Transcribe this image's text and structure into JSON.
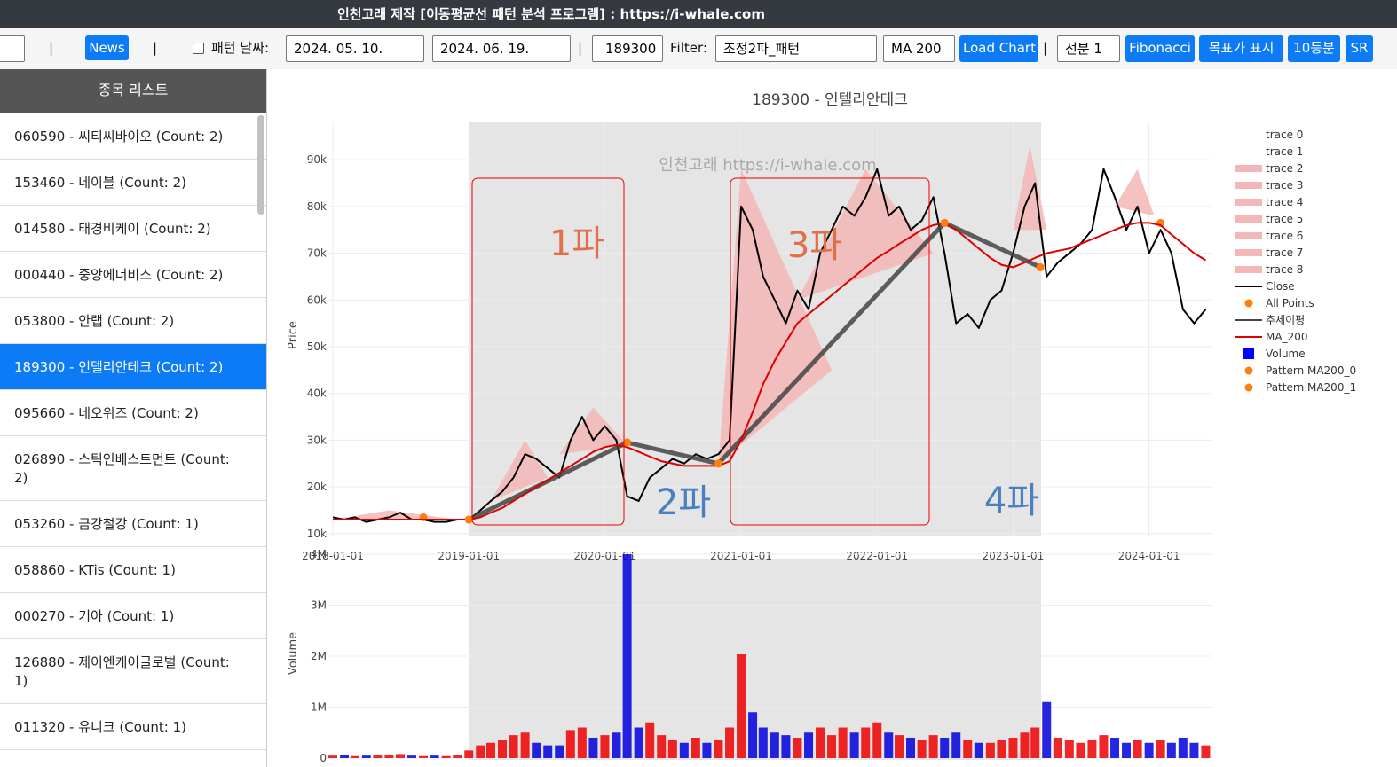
{
  "header": {
    "title": "인천고래 제작 [이동평균선 패턴 분석 프로그램] : https://i-whale.com"
  },
  "toolbar": {
    "separator": "|",
    "news": "News",
    "pattern_date_label": "패턴 날짜:",
    "date_start": "2024. 05. 10.",
    "date_end": "2024. 06. 19.",
    "code": "189300",
    "filter_label": "Filter:",
    "filter": "조정2파_패턴",
    "ma": "MA 200",
    "load": "Load Chart",
    "segment": "선분 1",
    "fibonacci": "Fibonacci",
    "target": "목표가 표시",
    "tenths": "10등분",
    "sr": "SR"
  },
  "sidebar": {
    "title": "종목 리스트",
    "selected": 5,
    "items": [
      "060590 - 씨티씨바이오 (Count: 2)",
      "153460 - 네이블 (Count: 2)",
      "014580 - 태경비케이 (Count: 2)",
      "000440 - 중앙에너비스 (Count: 2)",
      "053800 - 안랩 (Count: 2)",
      "189300 - 인텔리안테크 (Count: 2)",
      "095660 - 네오위즈 (Count: 2)",
      "026890 - 스틱인베스트먼트 (Count: 2)",
      "053260 - 금강철강 (Count: 1)",
      "058860 - KTis (Count: 1)",
      "000270 - 기아 (Count: 1)",
      "126880 - 제이엔케이글로벌 (Count: 1)",
      "011320 - 유니크 (Count: 1)"
    ]
  },
  "chart_data": [
    {
      "type": "line",
      "title": "189300 - 인텔리안테크",
      "watermark": "인천고래 https://i-whale.com",
      "y_label": "Price",
      "annotations": [
        "1파",
        "2파",
        "3파",
        "4파"
      ],
      "xlim": [
        "2017-12-20",
        "2024-06-19"
      ],
      "ylim": [
        9400,
        98000
      ],
      "xticks": [
        "2018-01-01",
        "2019-01-01",
        "2020-01-01",
        "2021-01-01",
        "2022-01-01",
        "2023-01-01",
        "2024-01-01"
      ],
      "yticks": [
        {
          "value": 10000,
          "label": "10k"
        },
        {
          "value": 20000,
          "label": "20k"
        },
        {
          "value": 30000,
          "label": "30k"
        },
        {
          "value": 40000,
          "label": "40k"
        },
        {
          "value": 50000,
          "label": "50k"
        },
        {
          "value": 60000,
          "label": "60k"
        },
        {
          "value": 70000,
          "label": "70k"
        },
        {
          "value": 80000,
          "label": "80k"
        },
        {
          "value": 90000,
          "label": "90k"
        }
      ],
      "grid": true,
      "x": [
        "2018-01-01",
        "2018-02-01",
        "2018-03-01",
        "2018-04-01",
        "2018-05-01",
        "2018-06-01",
        "2018-07-01",
        "2018-08-01",
        "2018-09-01",
        "2018-10-01",
        "2018-11-01",
        "2018-12-01",
        "2019-01-01",
        "2019-02-01",
        "2019-03-01",
        "2019-04-01",
        "2019-05-01",
        "2019-06-01",
        "2019-07-01",
        "2019-08-01",
        "2019-09-01",
        "2019-10-01",
        "2019-11-01",
        "2019-12-01",
        "2020-01-01",
        "2020-02-01",
        "2020-03-01",
        "2020-04-01",
        "2020-05-01",
        "2020-06-01",
        "2020-07-01",
        "2020-08-01",
        "2020-09-01",
        "2020-10-01",
        "2020-11-01",
        "2020-12-01",
        "2021-01-01",
        "2021-02-01",
        "2021-03-01",
        "2021-04-01",
        "2021-05-01",
        "2021-06-01",
        "2021-07-01",
        "2021-08-01",
        "2021-09-01",
        "2021-10-01",
        "2021-11-01",
        "2021-12-01",
        "2022-01-01",
        "2022-02-01",
        "2022-03-01",
        "2022-04-01",
        "2022-05-01",
        "2022-06-01",
        "2022-07-01",
        "2022-08-01",
        "2022-09-01",
        "2022-10-01",
        "2022-11-01",
        "2022-12-01",
        "2023-01-01",
        "2023-02-01",
        "2023-03-01",
        "2023-04-01",
        "2023-05-01",
        "2023-06-01",
        "2023-07-01",
        "2023-08-01",
        "2023-09-01",
        "2023-10-01",
        "2023-11-01",
        "2023-12-01",
        "2024-01-01",
        "2024-02-01",
        "2024-03-01",
        "2024-04-01",
        "2024-05-01",
        "2024-06-01"
      ],
      "series": [
        {
          "name": "trace 0",
          "kind": "none"
        },
        {
          "name": "trace 1",
          "kind": "none"
        },
        {
          "name": "trace 2",
          "kind": "fill",
          "color": "#f4b6b6",
          "x": [
            "2019-03-01",
            "2019-06-01",
            "2019-08-01"
          ],
          "values": [
            17000,
            30000,
            22000
          ]
        },
        {
          "name": "trace 3",
          "kind": "fill",
          "color": "#f4b6b6",
          "x": [
            "2019-09-01",
            "2019-12-01",
            "2020-03-01"
          ],
          "values": [
            27000,
            37000,
            29000
          ]
        },
        {
          "name": "trace 4",
          "kind": "fill",
          "color": "#f4b6b6",
          "x": [
            "2020-11-01",
            "2021-01-01",
            "2021-09-01"
          ],
          "values": [
            25000,
            88000,
            45000
          ]
        },
        {
          "name": "trace 5",
          "kind": "fill",
          "color": "#f4b6b6",
          "x": [
            "2021-06-01",
            "2021-12-01",
            "2022-06-01"
          ],
          "values": [
            60000,
            88000,
            70000
          ]
        },
        {
          "name": "trace 6",
          "kind": "fill",
          "color": "#f4b6b6",
          "x": [
            "2023-01-01",
            "2023-02-15",
            "2023-04-01"
          ],
          "values": [
            75000,
            93000,
            75000
          ]
        },
        {
          "name": "trace 7",
          "kind": "fill",
          "color": "#f4b6b6",
          "x": [
            "2023-10-01",
            "2023-12-01",
            "2024-01-15"
          ],
          "values": [
            80000,
            88000,
            78000
          ]
        },
        {
          "name": "trace 8",
          "kind": "fill",
          "color": "#f4b6b6",
          "x": [
            "2018-01-01",
            "2018-06-01",
            "2018-12-01"
          ],
          "values": [
            13000,
            15000,
            13000
          ]
        },
        {
          "name": "Close",
          "kind": "line",
          "color": "#000000",
          "width": 2,
          "values": [
            13500,
            13000,
            13500,
            12500,
            13000,
            13500,
            14500,
            13000,
            13000,
            12500,
            12500,
            13000,
            13000,
            15000,
            17000,
            19000,
            22000,
            27000,
            26000,
            24000,
            22000,
            30000,
            35000,
            30000,
            33000,
            30000,
            18000,
            17000,
            22000,
            24000,
            26000,
            25000,
            27000,
            26000,
            27000,
            30000,
            80000,
            75000,
            65000,
            60000,
            55000,
            62000,
            58000,
            70000,
            75000,
            80000,
            78000,
            82000,
            88000,
            78000,
            80000,
            75000,
            77000,
            82000,
            70000,
            55000,
            57000,
            54000,
            60000,
            62000,
            70000,
            80000,
            85000,
            65000,
            68000,
            70000,
            72000,
            75000,
            88000,
            82000,
            75000,
            80000,
            70000,
            75000,
            70000,
            58000,
            55000,
            58000
          ]
        },
        {
          "name": "All Points",
          "kind": "markers",
          "color": "#ff7f0e",
          "x": [
            "2018-09-01",
            "2019-01-01",
            "2020-03-01",
            "2020-11-01",
            "2022-07-01",
            "2023-03-15",
            "2024-02-01"
          ],
          "values": [
            13500,
            13000,
            29500,
            25000,
            76500,
            67000,
            76500
          ]
        },
        {
          "name": "추세이평",
          "kind": "line",
          "color": "#444444",
          "width": 5,
          "x": [
            "2019-01-01",
            "2020-03-01",
            "2020-11-01",
            "2022-07-01",
            "2023-03-15"
          ],
          "values": [
            13000,
            29500,
            25000,
            76500,
            67000
          ]
        },
        {
          "name": "MA_200",
          "kind": "line",
          "color": "#dd0000",
          "width": 2,
          "values": [
            13000,
            13000,
            13000,
            13000,
            13000,
            13000,
            13000,
            13000,
            13000,
            13000,
            13000,
            13000,
            13000,
            13500,
            14500,
            15500,
            17000,
            18500,
            20000,
            21500,
            23000,
            24500,
            26000,
            27500,
            28500,
            29000,
            28500,
            27500,
            26500,
            25500,
            25000,
            24500,
            24500,
            24500,
            24500,
            25500,
            30000,
            36000,
            42000,
            47000,
            51000,
            55000,
            57000,
            59000,
            61000,
            63000,
            65000,
            67000,
            69000,
            70500,
            72000,
            73500,
            75000,
            76000,
            76500,
            75000,
            73000,
            71000,
            69000,
            67500,
            67000,
            68000,
            69000,
            70000,
            70500,
            71000,
            72000,
            73000,
            74000,
            75000,
            76000,
            76500,
            76500,
            76000,
            74000,
            72000,
            70000,
            68500
          ]
        },
        {
          "name": "Pattern MA200_0",
          "kind": "markers",
          "color": "#ff7f0e",
          "x": [
            "2019-01-01",
            "2020-03-01",
            "2020-11-01"
          ],
          "values": [
            13000,
            29500,
            25000
          ]
        },
        {
          "name": "Pattern MA200_1",
          "kind": "markers",
          "color": "#ff7f0e",
          "x": [
            "2022-07-01",
            "2023-03-15"
          ],
          "values": [
            76500,
            67000
          ]
        }
      ]
    },
    {
      "type": "bar",
      "y_label": "Volume",
      "xlim": [
        "2017-12-20",
        "2024-06-19"
      ],
      "ylim": [
        0,
        4000000
      ],
      "yticks": [
        0,
        {
          "value": 1000000,
          "label": "1M"
        },
        {
          "value": 2000000,
          "label": "2M"
        },
        {
          "value": 3000000,
          "label": "3M"
        },
        {
          "value": 4000000,
          "label": "4M"
        }
      ],
      "up_color": "#ee0000",
      "down_color": "#0000dd",
      "series": [
        {
          "name": "Volume",
          "color": "#0000ff",
          "values": [
            50000,
            60000,
            40000,
            50000,
            70000,
            60000,
            80000,
            50000,
            40000,
            50000,
            40000,
            60000,
            150000,
            250000,
            300000,
            350000,
            450000,
            500000,
            300000,
            250000,
            250000,
            550000,
            600000,
            400000,
            450000,
            500000,
            4000000,
            600000,
            700000,
            450000,
            350000,
            300000,
            400000,
            300000,
            350000,
            600000,
            2050000,
            900000,
            600000,
            500000,
            450000,
            400000,
            500000,
            600000,
            450000,
            600000,
            500000,
            600000,
            700000,
            500000,
            450000,
            400000,
            350000,
            450000,
            400000,
            500000,
            350000,
            300000,
            300000,
            350000,
            400000,
            500000,
            600000,
            1100000,
            400000,
            350000,
            300000,
            350000,
            450000,
            400000,
            300000,
            350000,
            300000,
            350000,
            300000,
            400000,
            300000,
            250000
          ]
        }
      ]
    }
  ]
}
